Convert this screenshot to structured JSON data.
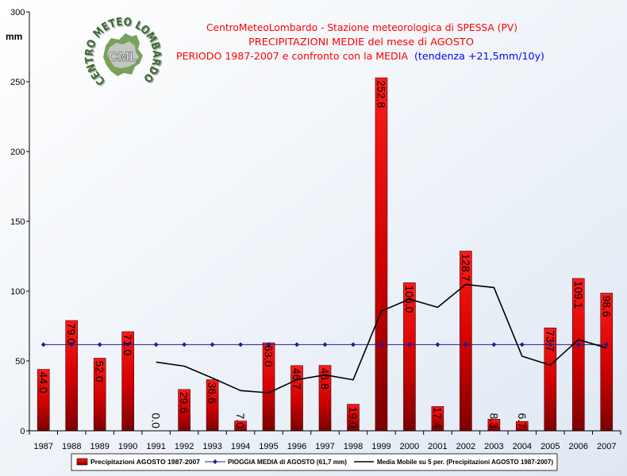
{
  "chart_data": {
    "type": "bar",
    "title": {
      "line1": "CentroMeteoLombardo - Stazione meteorologica di SPESSA (PV)",
      "line2": "PRECIPITAZIONI MEDIE del mese di AGOSTO",
      "line3": "PERIODO 1987-2007 e confronto con la MEDIA",
      "trend": "(tendenza +21,5mm/10y)"
    },
    "ylabel": "mm",
    "ylim": [
      0,
      300
    ],
    "yticks": [
      0,
      50,
      100,
      150,
      200,
      250,
      300
    ],
    "categories": [
      "1987",
      "1988",
      "1989",
      "1990",
      "1991",
      "1992",
      "1993",
      "1994",
      "1995",
      "1996",
      "1997",
      "1998",
      "1999",
      "2000",
      "2001",
      "2002",
      "2003",
      "2004",
      "2005",
      "2006",
      "2007"
    ],
    "series": [
      {
        "name": "Precipitazioni AGOSTO 1987-2007",
        "type": "bar",
        "data_labels": true,
        "values": [
          44.0,
          79.0,
          52.0,
          71.0,
          0.0,
          29.6,
          36.6,
          7.0,
          63.0,
          46.7,
          46.8,
          19.0,
          252.8,
          106.0,
          17.4,
          128.7,
          8.3,
          6.7,
          73.7,
          109.1,
          98.6
        ]
      },
      {
        "name": "PIOGGIA MEDIA di AGOSTO (61,7 mm)",
        "type": "line",
        "marker": "diamond",
        "values": [
          61.7,
          61.7,
          61.7,
          61.7,
          61.7,
          61.7,
          61.7,
          61.7,
          61.7,
          61.7,
          61.7,
          61.7,
          61.7,
          61.7,
          61.7,
          61.7,
          61.7,
          61.7,
          61.7,
          61.7,
          61.7
        ]
      },
      {
        "name": "Media Mobile su 5 per. (Precipitazioni AGOSTO 1987-2007)",
        "type": "line",
        "values": [
          null,
          null,
          null,
          null,
          49.2,
          46.3,
          37.8,
          28.8,
          27.2,
          36.6,
          40.0,
          36.5,
          85.7,
          94.3,
          88.4,
          104.8,
          102.6,
          53.4,
          47.0,
          65.3,
          59.3
        ]
      }
    ],
    "grid": false,
    "legend_position": "bottom"
  },
  "colors": {
    "title": "#ff0000",
    "trend": "#0000ff",
    "bar_top": "#ff1a1a",
    "bar_bottom": "#7d0000",
    "mean_line": "#1e1e96",
    "moving_average": "#000000",
    "logo_text": "#2f5d22"
  },
  "logo": {
    "ring_text": "CENTRO METEO LOMBARDO",
    "center_text": "CML"
  }
}
